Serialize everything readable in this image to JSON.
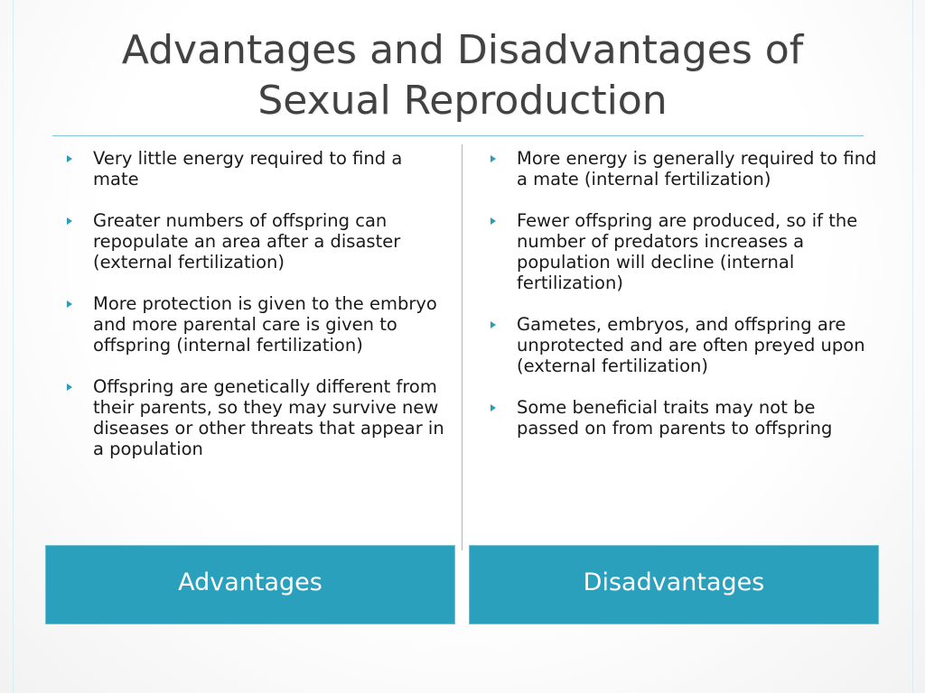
{
  "slide": {
    "title_line1": "Advantages and Disadvantages of",
    "title_line2": "Sexual Reproduction"
  },
  "advantages": {
    "label": "Advantages",
    "items": [
      "Very little energy required to find a mate",
      "Greater numbers of offspring can repopulate an area after a disaster (external fertilization)",
      "More protection is given to the embryo and more parental care is given to offspring (internal fertilization)",
      "Offspring are genetically different from their parents, so they may survive new diseases or other threats that appear in a population"
    ]
  },
  "disadvantages": {
    "label": "Disadvantages",
    "items": [
      "More energy is generally required to find a mate (internal fertilization)",
      "Fewer offspring are produced, so if the number of predators increases a population will decline (internal fertilization)",
      "Gametes, embryos, and offspring are unprotected and are often preyed upon (external fertilization)",
      "Some beneficial traits may not be passed on from parents to offspring"
    ]
  },
  "colors": {
    "accent": "#2aa0bd",
    "bullet": "#2e9bb9",
    "title_text": "#424242",
    "rule": "#7fc6d6"
  },
  "icons": {
    "bullet": "triangle-bullet-icon"
  }
}
